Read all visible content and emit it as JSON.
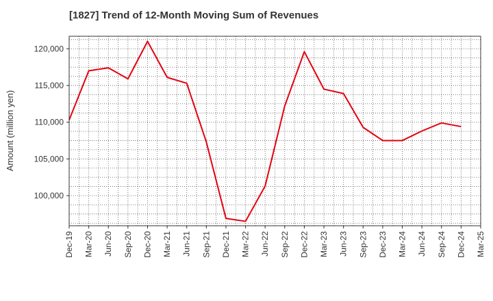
{
  "chart_data": {
    "type": "line",
    "title": "[1827]  Trend of 12-Month Moving Sum of Revenues",
    "xlabel": "",
    "ylabel": "Amount (million yen)",
    "categories": [
      "Dec-19",
      "Mar-20",
      "Jun-20",
      "Sep-20",
      "Dec-20",
      "Mar-21",
      "Jun-21",
      "Sep-21",
      "Dec-21",
      "Mar-22",
      "Jun-22",
      "Sep-22",
      "Dec-22",
      "Mar-23",
      "Jun-23",
      "Sep-23",
      "Dec-23",
      "Mar-24",
      "Jun-24",
      "Sep-24",
      "Dec-24",
      "Mar-25"
    ],
    "y_ticks": [
      100000,
      105000,
      110000,
      115000,
      120000
    ],
    "y_tick_labels": [
      "100,000",
      "105,000",
      "110,000",
      "115,000",
      "120,000"
    ],
    "ylim": [
      95900,
      121700
    ],
    "grid": true,
    "series": [
      {
        "color": "#e3000f",
        "values": [
          110300,
          117000,
          117400,
          115900,
          121000,
          116100,
          115300,
          107300,
          96900,
          96500,
          101300,
          112200,
          119600,
          114500,
          113900,
          109300,
          107500,
          107500,
          108800,
          109900,
          109400,
          null
        ]
      }
    ]
  }
}
